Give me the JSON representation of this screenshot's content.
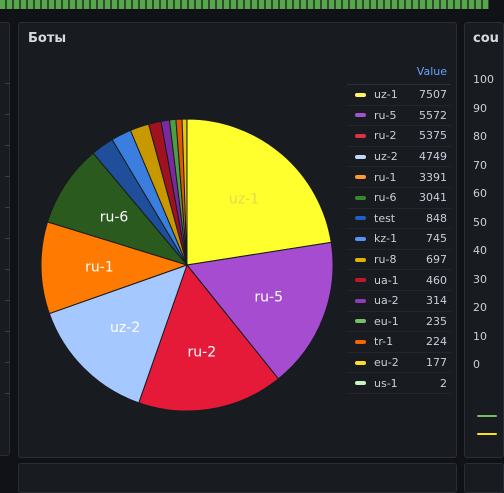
{
  "dashboard": {
    "right_panel_title": "cou",
    "right_panel_ticks": [
      "100",
      "90",
      "80",
      "70",
      "60",
      "50",
      "40",
      "30",
      "20",
      "10",
      "0"
    ]
  },
  "chart_data": {
    "type": "pie",
    "title": "Боты",
    "legend_header": "Value",
    "legend_position": "right",
    "slices": [
      {
        "name": "uz-1",
        "value": 7507,
        "color": "#fff267"
      },
      {
        "name": "ru-5",
        "value": 5572,
        "color": "#a352cc"
      },
      {
        "name": "ru-2",
        "value": 5375,
        "color": "#e02f44"
      },
      {
        "name": "uz-2",
        "value": 4749,
        "color": "#c0d8ff"
      },
      {
        "name": "ru-1",
        "value": 3391,
        "color": "#ff9830"
      },
      {
        "name": "ru-6",
        "value": 3041,
        "color": "#37872d"
      },
      {
        "name": "test",
        "value": 848,
        "color": "#1f60c4"
      },
      {
        "name": "kz-1",
        "value": 745,
        "color": "#5794f2"
      },
      {
        "name": "ru-8",
        "value": 697,
        "color": "#e0b400"
      },
      {
        "name": "ua-1",
        "value": 460,
        "color": "#c4162a"
      },
      {
        "name": "ua-2",
        "value": 314,
        "color": "#8f3bb8"
      },
      {
        "name": "eu-1",
        "value": 235,
        "color": "#73bf69"
      },
      {
        "name": "tr-1",
        "value": 224,
        "color": "#fa6400"
      },
      {
        "name": "eu-2",
        "value": 177,
        "color": "#fade2a"
      },
      {
        "name": "us-1",
        "value": 2,
        "color": "#c8f2c2"
      }
    ],
    "fills": [
      "#ffff2e",
      "#a54cd0",
      "#e41a38",
      "#a4c8ff",
      "#ff7a00",
      "#2b5a1f",
      "#1f4f9a",
      "#3a7fe0",
      "#c89800",
      "#a0121f",
      "#7a2aa0",
      "#4aa040",
      "#e05800",
      "#e8c800",
      "#a8e09c"
    ],
    "label_colors": [
      "#e8d84a",
      "#ffffff",
      "#ffffff",
      "#ffffff",
      "#ffffff",
      "#ffffff"
    ]
  }
}
